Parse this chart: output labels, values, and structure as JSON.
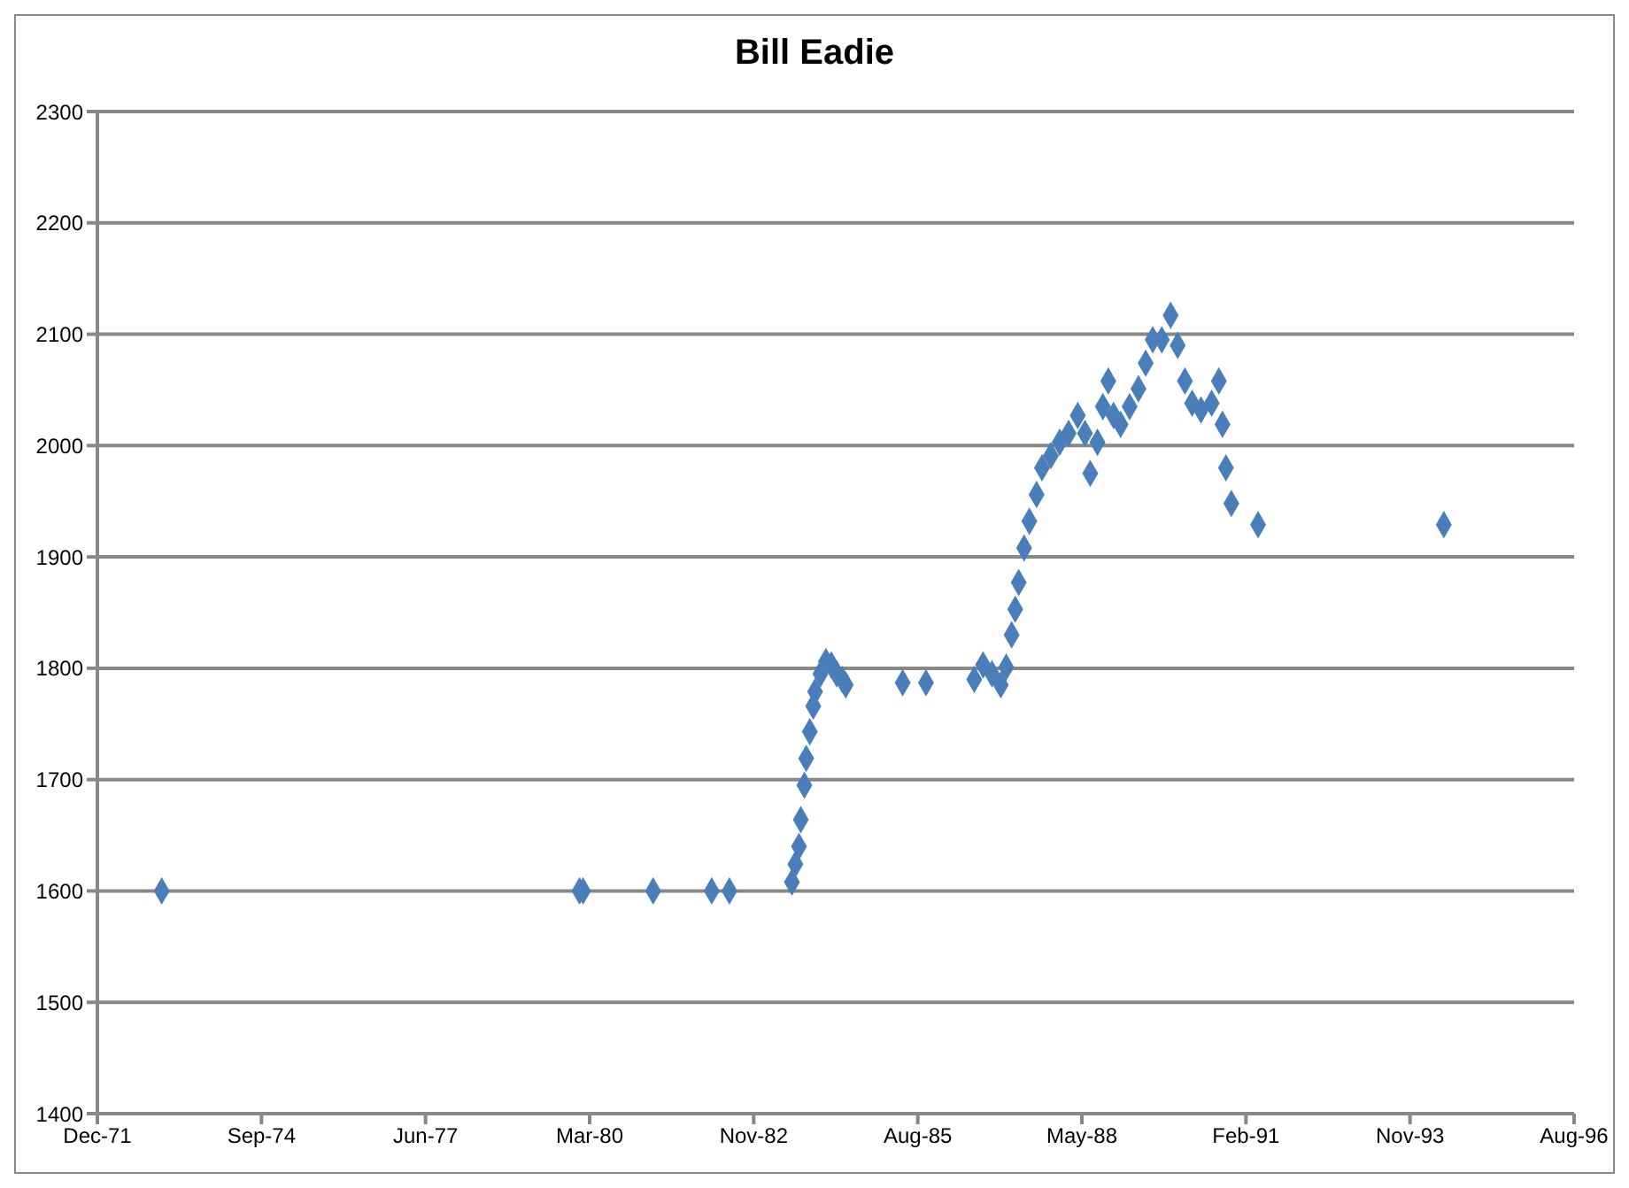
{
  "chart_data": {
    "type": "scatter",
    "title": "Bill Eadie",
    "marker": "diamond",
    "grid": "y",
    "x": [
      "1973-01-10",
      "1979-12-31",
      "1980-01-22",
      "1981-03-24",
      "1982-03-16",
      "1982-07-02",
      "1983-07-18",
      "1983-08-08",
      "1983-08-30",
      "1983-09-10",
      "1983-10-02",
      "1983-10-13",
      "1983-11-04",
      "1983-11-25",
      "1983-12-06",
      "1984-01-08",
      "1984-02-10",
      "1984-03-14",
      "1984-04-16",
      "1984-05-19",
      "1984-06-10",
      "1985-05-23",
      "1985-10-12",
      "1986-08-02",
      "1986-09-25",
      "1986-11-18",
      "1987-01-11",
      "1987-02-13",
      "1987-03-18",
      "1987-04-09",
      "1987-04-30",
      "1987-06-02",
      "1987-07-04",
      "1987-08-17",
      "1987-09-19",
      "1987-11-12",
      "1988-01-05",
      "1988-02-28",
      "1988-04-24",
      "1988-06-07",
      "1988-07-09",
      "1988-08-22",
      "1988-09-24",
      "1988-10-27",
      "1988-11-28",
      "1989-01-10",
      "1989-03-06",
      "1989-04-29",
      "1989-06-12",
      "1989-07-25",
      "1989-09-18",
      "1989-11-11",
      "1989-12-24",
      "1990-02-06",
      "1990-03-22",
      "1990-05-15",
      "1990-07-19",
      "1990-09-01",
      "1990-09-23",
      "1990-10-14",
      "1990-11-16",
      "1991-04-28",
      "1994-06-03"
    ],
    "series": [
      {
        "color": "#4a7ebb",
        "values": [
          1600,
          1600,
          1600,
          1600,
          1600,
          1600,
          1608,
          1624,
          1640,
          1664,
          1695,
          1719,
          1743,
          1766,
          1779,
          1795,
          1806,
          1803,
          1795,
          1790,
          1785,
          1787,
          1787,
          1790,
          1803,
          1795,
          1785,
          1801,
          1830,
          1853,
          1877,
          1908,
          1932,
          1956,
          1980,
          1991,
          2003,
          2011,
          2027,
          2011,
          1975,
          2003,
          2035,
          2058,
          2027,
          2019,
          2035,
          2051,
          2074,
          2095,
          2095,
          2117,
          2090,
          2058,
          2038,
          2032,
          2038,
          2058,
          2019,
          1980,
          1948,
          1929,
          1929
        ]
      }
    ],
    "xlim": [
      "1971-12-15",
      "1996-08-05"
    ],
    "xticks": [
      {
        "value": "1971-12-15",
        "label": "Dec-71"
      },
      {
        "value": "1974-09-10",
        "label": "Sep-74"
      },
      {
        "value": "1977-06-06",
        "label": "Jun-77"
      },
      {
        "value": "1980-03-02",
        "label": "Mar-80"
      },
      {
        "value": "1982-11-27",
        "label": "Nov-82"
      },
      {
        "value": "1985-08-23",
        "label": "Aug-85"
      },
      {
        "value": "1988-05-19",
        "label": "May-88"
      },
      {
        "value": "1991-02-13",
        "label": "Feb-91"
      },
      {
        "value": "1993-11-09",
        "label": "Nov-93"
      },
      {
        "value": "1996-08-05",
        "label": "Aug-96"
      }
    ],
    "ylim": [
      1400,
      2300
    ],
    "yticks": [
      1400,
      1500,
      1600,
      1700,
      1800,
      1900,
      2000,
      2100,
      2200,
      2300
    ]
  }
}
